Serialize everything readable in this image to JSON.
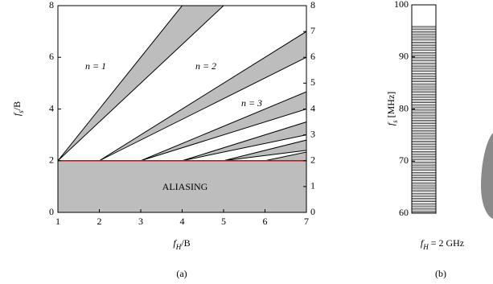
{
  "chart_data": [
    {
      "type": "band-diagram",
      "panel": "(a)",
      "xlabel": [
        "f",
        "H",
        "/B"
      ],
      "ylabel": [
        "f",
        "s",
        "/B"
      ],
      "xlim": [
        1,
        7
      ],
      "ylim": [
        0,
        8
      ],
      "xticks": [
        1,
        2,
        3,
        4,
        5,
        6,
        7
      ],
      "yticks": [
        0,
        2,
        4,
        6,
        8
      ],
      "y2lim": [
        0,
        8
      ],
      "y2ticks": [
        0,
        1,
        2,
        3,
        4,
        5,
        6,
        7,
        8
      ],
      "region_labels": [
        "n = 1",
        "n = 2",
        "n = 3"
      ],
      "annotation": "ALIASING",
      "band_color": "#bdbdbd",
      "limit_color": "#e00000"
    },
    {
      "type": "stripe",
      "panel": "(b)",
      "ylabel": [
        "f",
        "s",
        " [MHz]"
      ],
      "caption": [
        "f",
        "H",
        " = 2 GHz"
      ],
      "ylim": [
        60,
        100
      ],
      "yticks": [
        60,
        70,
        80,
        90,
        100
      ],
      "band_color": "#bdbdbd"
    }
  ]
}
